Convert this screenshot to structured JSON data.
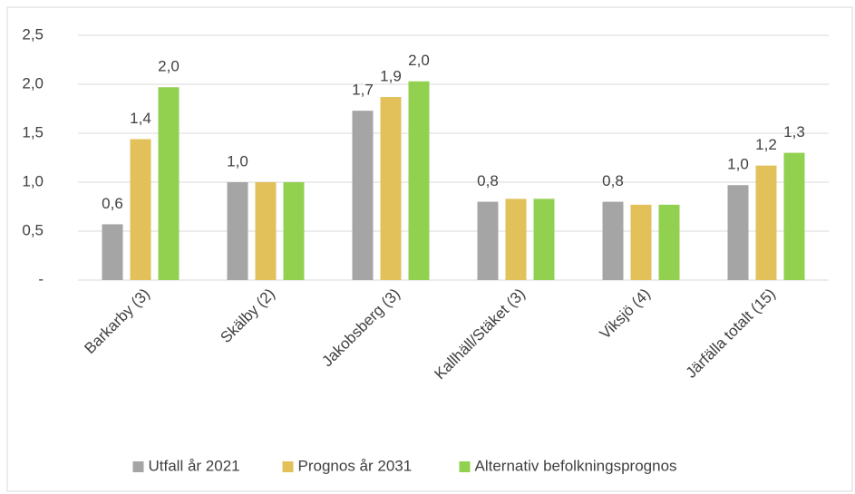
{
  "chart_data": {
    "type": "bar",
    "categories": [
      "Barkarby (3)",
      "Skälby (2)",
      "Jakobsberg (3)",
      "Kallhäll/Stäket (3)",
      "Viksjö (4)",
      "Järfälla totalt (15)"
    ],
    "series": [
      {
        "name": "Utfall år 2021",
        "color": "#a5a5a5",
        "values": [
          0.57,
          1.0,
          1.73,
          0.8,
          0.8,
          0.97
        ],
        "value_labels": [
          "0,6",
          "1,0",
          "1,7",
          "0,8",
          "0,8",
          "1,0"
        ]
      },
      {
        "name": "Prognos år 2031",
        "color": "#e2c15b",
        "values": [
          1.44,
          1.0,
          1.87,
          0.83,
          0.77,
          1.17
        ],
        "value_labels": [
          "1,4",
          null,
          "1,9",
          null,
          null,
          "1,2"
        ]
      },
      {
        "name": "Alternativ befolkningsprognos",
        "color": "#92d050",
        "values": [
          1.97,
          1.0,
          2.03,
          0.83,
          0.77,
          1.3
        ],
        "value_labels": [
          "2,0",
          null,
          "2,0",
          null,
          null,
          "1,3"
        ]
      }
    ],
    "ylim": [
      0,
      2.5
    ],
    "yticks": [
      {
        "value": 0,
        "label": "-"
      },
      {
        "value": 0.5,
        "label": "0,5"
      },
      {
        "value": 1,
        "label": "1,0"
      },
      {
        "value": 1.5,
        "label": "1,5"
      },
      {
        "value": 2,
        "label": "2,0"
      },
      {
        "value": 2.5,
        "label": "2,5"
      }
    ],
    "grid": true,
    "legend": "bottom"
  }
}
